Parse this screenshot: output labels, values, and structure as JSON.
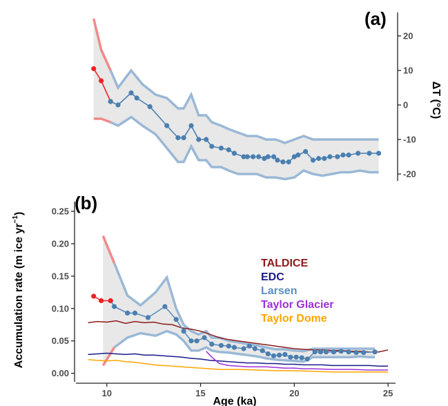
{
  "chart_data": [
    {
      "type": "line",
      "panel_label": "(a)",
      "ylabel": "ΔT (°C)",
      "xlim": [
        8.5,
        25.4
      ],
      "ylim": [
        -22,
        28
      ],
      "yticks": [
        20,
        10,
        0,
        -10,
        -20
      ],
      "ytick_labels": [
        "20",
        "10",
        "0",
        "-10",
        "-20"
      ],
      "y_axis_position": "right",
      "series": [
        {
          "color": "#ee2222",
          "x": [
            9.3,
            9.7,
            10.2
          ],
          "y": [
            10.5,
            7.0,
            1.0
          ]
        },
        {
          "color": "#4a7fb0",
          "x": [
            10.2,
            10.6,
            11.3,
            11.6,
            12.3,
            13.2,
            13.8,
            14.1,
            14.5,
            14.9,
            15.3,
            15.6,
            16.1,
            16.5,
            16.8,
            17.3,
            17.5,
            17.8,
            18.1,
            18.4,
            18.6,
            18.9,
            19.1,
            19.4,
            19.7,
            20.0,
            20.2,
            20.6,
            21.0,
            21.3,
            21.6,
            21.9,
            22.3,
            22.6,
            22.9,
            23.4,
            24.0,
            24.5
          ],
          "y": [
            1.0,
            0.0,
            3.5,
            2.0,
            -0.5,
            -6.0,
            -9.5,
            -9.5,
            -6.0,
            -10.0,
            -10.0,
            -12.0,
            -12.5,
            -13.0,
            -14.0,
            -15.0,
            -15.0,
            -15.0,
            -15.0,
            -15.5,
            -15.0,
            -15.0,
            -16.0,
            -16.5,
            -16.5,
            -15.0,
            -14.5,
            -13.5,
            -16.0,
            -15.5,
            -15.5,
            -15.0,
            -15.0,
            -14.5,
            -14.5,
            -14.0,
            -14.0,
            -14.0
          ]
        }
      ],
      "envelope": {
        "x": [
          9.3,
          9.7,
          10.2,
          10.6,
          11.3,
          11.9,
          12.6,
          13.2,
          13.8,
          14.1,
          14.5,
          14.9,
          15.3,
          15.6,
          16.1,
          16.5,
          17.0,
          17.5,
          18.0,
          18.5,
          19.0,
          19.5,
          20.0,
          20.5,
          21.0,
          21.5,
          22.0,
          22.5,
          23.0,
          23.5,
          24.0,
          24.5
        ],
        "upper": [
          25.0,
          16.0,
          10.0,
          5.0,
          10.0,
          6.0,
          3.0,
          2.0,
          -1.0,
          -1.0,
          3.0,
          -3.0,
          -3.0,
          -5.0,
          -6.0,
          -7.0,
          -8.0,
          -9.0,
          -9.0,
          -10.0,
          -10.0,
          -11.0,
          -10.0,
          -9.0,
          -10.0,
          -10.0,
          -10.0,
          -10.0,
          -10.0,
          -10.0,
          -10.0,
          -10.0
        ],
        "lower": [
          -4.0,
          -4.0,
          -5.0,
          -6.0,
          -3.5,
          -6.0,
          -8.5,
          -12.5,
          -16.5,
          -16.5,
          -12.0,
          -16.0,
          -16.0,
          -18.0,
          -18.0,
          -19.0,
          -20.0,
          -20.0,
          -20.0,
          -21.0,
          -21.0,
          -21.5,
          -21.0,
          -19.0,
          -20.0,
          -20.5,
          -20.0,
          -19.5,
          -19.5,
          -19.0,
          -19.5,
          -19.5
        ],
        "upper_color_early": "#ee7777",
        "upper_color": "#9ab8d6"
      }
    },
    {
      "type": "line",
      "panel_label": "(b)",
      "xlabel": "Age (ka)",
      "ylabel": "Accumulation rate (m ice yr",
      "ylabel_sup": "−1",
      "ylabel_close": ")",
      "xlim": [
        8.5,
        25.4
      ],
      "ylim": [
        -0.01,
        0.265
      ],
      "xticks": [
        10,
        15,
        20,
        25
      ],
      "xtick_labels": [
        "10",
        "15",
        "20",
        "25"
      ],
      "yticks": [
        0.0,
        0.05,
        0.1,
        0.15,
        0.2,
        0.25
      ],
      "ytick_labels": [
        "0.00",
        "0.05",
        "0.10",
        "0.15",
        "0.20",
        "0.25"
      ],
      "legend_position": "right",
      "legend": [
        {
          "label": "TALDICE",
          "color": "#8b1a1a"
        },
        {
          "label": "EDC",
          "color": "#1a1a8b"
        },
        {
          "label": "Larsen",
          "color": "#5b8cc2"
        },
        {
          "label": "Taylor Glacier",
          "color": "#9b30d9"
        },
        {
          "label": "Taylor Dome",
          "color": "#ffa500"
        }
      ],
      "series": [
        {
          "name": "TALDICE",
          "color": "#8b1a1a",
          "x": [
            9.0,
            9.5,
            10.0,
            10.5,
            11.0,
            11.5,
            12.0,
            12.5,
            13.0,
            13.5,
            14.0,
            14.5,
            15.0,
            15.5,
            16.0,
            16.5,
            17.0,
            17.5,
            18.0,
            18.5,
            19.0,
            19.5,
            20.0,
            20.5,
            21.0,
            21.5,
            22.0,
            22.5,
            23.0,
            23.5,
            24.0,
            24.5,
            25.0
          ],
          "y": [
            0.078,
            0.08,
            0.079,
            0.081,
            0.077,
            0.08,
            0.078,
            0.079,
            0.076,
            0.075,
            0.07,
            0.068,
            0.065,
            0.06,
            0.055,
            0.052,
            0.05,
            0.048,
            0.046,
            0.044,
            0.042,
            0.04,
            0.038,
            0.037,
            0.036,
            0.036,
            0.035,
            0.035,
            0.034,
            0.034,
            0.033,
            0.033,
            0.036
          ]
        },
        {
          "name": "EDC",
          "color": "#1a1a8b",
          "x": [
            9.0,
            9.5,
            10.0,
            10.5,
            11.0,
            11.5,
            12.0,
            12.5,
            13.0,
            13.5,
            14.0,
            14.5,
            15.0,
            15.5,
            16.0,
            16.5,
            17.0,
            17.5,
            18.0,
            18.5,
            19.0,
            19.5,
            20.0,
            20.5,
            21.0,
            21.5,
            22.0,
            22.5,
            23.0,
            23.5,
            24.0,
            24.5,
            25.0
          ],
          "y": [
            0.029,
            0.03,
            0.031,
            0.03,
            0.029,
            0.03,
            0.028,
            0.028,
            0.027,
            0.026,
            0.025,
            0.023,
            0.022,
            0.02,
            0.019,
            0.018,
            0.017,
            0.016,
            0.016,
            0.015,
            0.015,
            0.014,
            0.014,
            0.013,
            0.013,
            0.013,
            0.012,
            0.012,
            0.012,
            0.012,
            0.012,
            0.011,
            0.011
          ]
        },
        {
          "name": "Larsen",
          "color": "#5b8cc2",
          "x": [
            10.2,
            10.4,
            11.1,
            11.5,
            12.2,
            13.1,
            13.7,
            14.1,
            14.5,
            14.8,
            15.2,
            15.6,
            16.1,
            16.5,
            16.8,
            17.3,
            17.6,
            17.9,
            18.3,
            18.6,
            18.9,
            19.2,
            19.5,
            19.8,
            20.1,
            20.4,
            20.7,
            21.1,
            21.4,
            21.7,
            22.1,
            22.5,
            22.9,
            23.3,
            23.7,
            24.3
          ],
          "y": [
            0.112,
            0.103,
            0.093,
            0.093,
            0.086,
            0.103,
            0.083,
            0.065,
            0.05,
            0.05,
            0.055,
            0.045,
            0.043,
            0.042,
            0.04,
            0.038,
            0.042,
            0.038,
            0.035,
            0.03,
            0.027,
            0.028,
            0.029,
            0.025,
            0.025,
            0.024,
            0.022,
            0.033,
            0.033,
            0.033,
            0.033,
            0.034,
            0.033,
            0.032,
            0.032,
            0.033
          ]
        },
        {
          "name": "Larsen early",
          "color": "#ee2222",
          "x": [
            9.3,
            9.7,
            10.2
          ],
          "y": [
            0.119,
            0.112,
            0.112
          ]
        },
        {
          "name": "Taylor Glacier",
          "color": "#9b30d9",
          "x": [
            15.3,
            15.6,
            16.0,
            16.5,
            17.0,
            17.5,
            18.0,
            18.5,
            19.0,
            19.5,
            20.0,
            20.5,
            21.0,
            22.0,
            23.0,
            24.0,
            25.0
          ],
          "y": [
            0.034,
            0.025,
            0.015,
            0.012,
            0.011,
            0.01,
            0.01,
            0.01,
            0.009,
            0.008,
            0.008,
            0.007,
            0.007,
            0.006,
            0.006,
            0.005,
            0.005
          ]
        },
        {
          "name": "Taylor Dome",
          "color": "#ffa500",
          "x": [
            9.0,
            9.5,
            10.0,
            10.5,
            11.0,
            11.5,
            12.0,
            12.5,
            13.0,
            13.5,
            14.0,
            14.5,
            15.0,
            15.5,
            16.0,
            17.0,
            18.0,
            19.0,
            20.0,
            21.0,
            22.0,
            23.0,
            24.0,
            25.0
          ],
          "y": [
            0.021,
            0.02,
            0.019,
            0.02,
            0.018,
            0.017,
            0.015,
            0.013,
            0.012,
            0.011,
            0.01,
            0.009,
            0.008,
            0.007,
            0.006,
            0.006,
            0.005,
            0.004,
            0.004,
            0.003,
            0.002,
            0.002,
            0.002,
            0.002
          ]
        }
      ],
      "envelope": {
        "x": [
          9.8,
          10.4,
          11.1,
          11.8,
          12.6,
          13.2,
          13.7,
          14.1,
          14.5,
          14.9,
          15.3,
          15.6,
          16.0,
          16.5,
          17.0,
          17.5,
          18.0,
          18.5,
          19.0,
          19.5,
          20.0,
          20.5,
          21.0,
          21.5,
          22.0,
          22.5,
          23.0,
          23.5,
          24.0,
          24.3
        ],
        "upper": [
          0.212,
          0.17,
          0.12,
          0.105,
          0.125,
          0.148,
          0.1,
          0.075,
          0.065,
          0.06,
          0.065,
          0.055,
          0.055,
          0.05,
          0.048,
          0.045,
          0.043,
          0.04,
          0.037,
          0.037,
          0.035,
          0.034,
          0.038,
          0.038,
          0.038,
          0.038,
          0.038,
          0.038,
          0.038,
          0.038
        ],
        "lower": [
          0.012,
          0.04,
          0.055,
          0.062,
          0.058,
          0.065,
          0.06,
          0.05,
          0.035,
          0.035,
          0.04,
          0.035,
          0.033,
          0.032,
          0.03,
          0.028,
          0.026,
          0.023,
          0.021,
          0.02,
          0.019,
          0.018,
          0.025,
          0.025,
          0.025,
          0.025,
          0.025,
          0.026,
          0.025,
          0.025
        ],
        "upper_color_early": "#ee7777",
        "upper_color": "#9ab8d6"
      }
    }
  ]
}
